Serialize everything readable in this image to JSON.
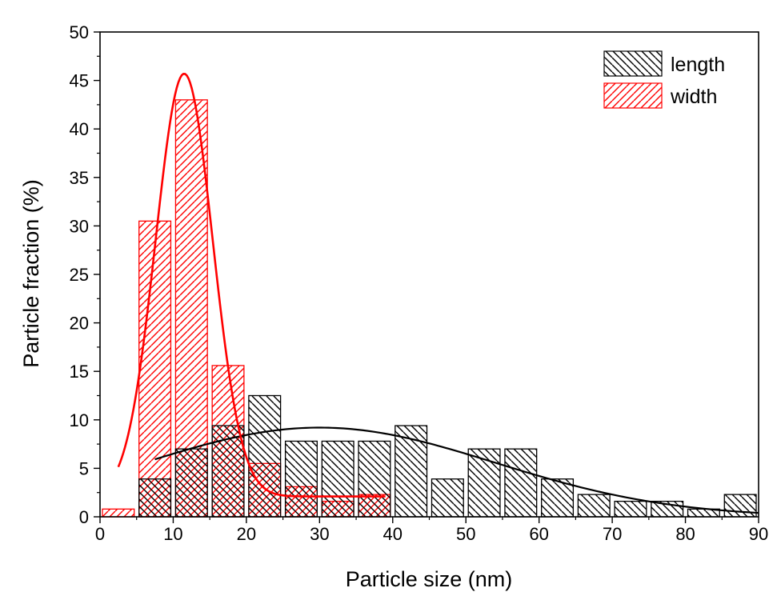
{
  "colors": {
    "length": "#000000",
    "width": "#ff0000",
    "background": "#ffffff"
  },
  "chart_data": {
    "type": "bar",
    "xlabel": "Particle size (nm)",
    "ylabel": "Particle fraction (%)",
    "xlim": [
      0,
      90
    ],
    "ylim": [
      0,
      50
    ],
    "xticks": [
      0,
      10,
      20,
      30,
      40,
      50,
      60,
      70,
      80,
      90
    ],
    "yticks": [
      0,
      5,
      10,
      15,
      20,
      25,
      30,
      35,
      40,
      45,
      50
    ],
    "grid": false,
    "legend_position": "top-right",
    "bin_width": 5,
    "series": [
      {
        "name": "length",
        "color": "#000000",
        "hatch": "backslash",
        "bin_centers": [
          7.5,
          12.5,
          17.5,
          22.5,
          27.5,
          32.5,
          37.5,
          42.5,
          47.5,
          52.5,
          57.5,
          62.5,
          67.5,
          72.5,
          77.5,
          82.5,
          87.5
        ],
        "values": [
          3.9,
          7.0,
          9.4,
          12.5,
          7.8,
          7.8,
          7.8,
          9.4,
          3.9,
          7.0,
          7.0,
          3.9,
          2.3,
          1.6,
          1.6,
          0.8,
          2.3
        ],
        "fit": {
          "type": "gaussian",
          "x_range": [
            7.5,
            90
          ],
          "peak_x": 30,
          "peak_y": 9.2,
          "sigma": 24,
          "baseline": 0
        }
      },
      {
        "name": "width",
        "color": "#ff0000",
        "hatch": "slash",
        "bin_centers": [
          2.5,
          7.5,
          12.5,
          17.5,
          22.5,
          27.5,
          32.5,
          37.5
        ],
        "values": [
          0.8,
          30.5,
          43.0,
          15.6,
          5.5,
          3.1,
          1.6,
          2.3
        ],
        "fit": {
          "type": "gaussian",
          "x_range": [
            2.5,
            39
          ],
          "peak_x": 11.5,
          "peak_y": 45.7,
          "sigma": 3.9,
          "baseline": 2.1
        }
      }
    ]
  }
}
